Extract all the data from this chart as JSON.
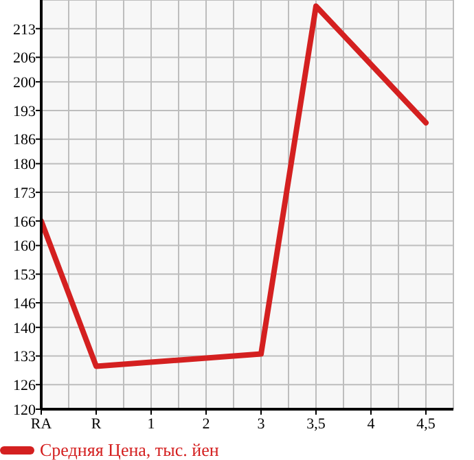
{
  "chart_data": {
    "type": "line",
    "categories": [
      "RA",
      "R",
      "1",
      "2",
      "3",
      "3,5",
      "4",
      "4,5"
    ],
    "series": [
      {
        "name": "Средняя Цена, тыс. йен",
        "color": "#d42020",
        "values": [
          166,
          130.5,
          null,
          null,
          133.5,
          218.5,
          null,
          190
        ]
      }
    ],
    "ylim": [
      120,
      220
    ],
    "yticks": [
      120,
      126,
      133,
      140,
      146,
      153,
      160,
      166,
      173,
      180,
      186,
      193,
      200,
      206,
      213
    ],
    "grid": true,
    "legend": "bottom",
    "marker": "none",
    "line_style": "solid"
  }
}
